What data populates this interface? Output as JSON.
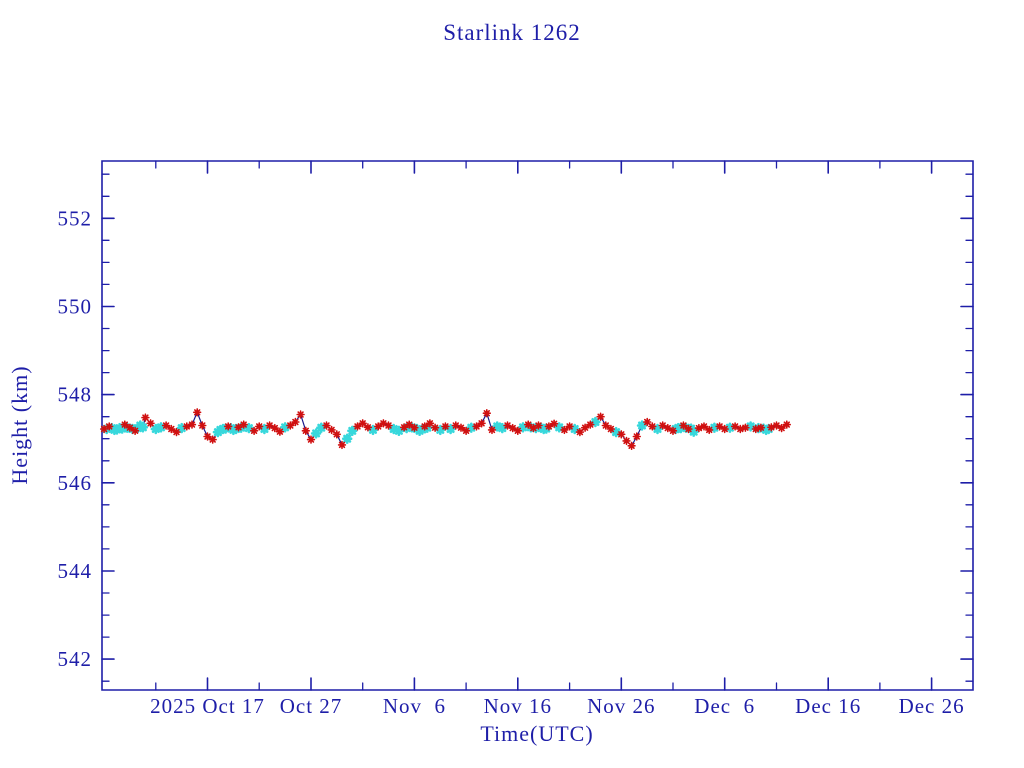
{
  "page": {
    "background": "#ffffff"
  },
  "chart_data": {
    "type": "line",
    "title": "Starlink 1262",
    "xlabel": "Time(UTC)",
    "ylabel": "Height (km)",
    "x_unit": "days, day 0 = 2025 Oct 7",
    "xlim": [
      -0.2,
      84.0
    ],
    "ylim": [
      541.3,
      553.3
    ],
    "grid": false,
    "legend": null,
    "x_major_ticks": [
      {
        "day": 10,
        "label": "2025 Oct 17"
      },
      {
        "day": 20,
        "label": "Oct 27"
      },
      {
        "day": 30,
        "label": "Nov  6"
      },
      {
        "day": 40,
        "label": "Nov 16"
      },
      {
        "day": 50,
        "label": "Nov 26"
      },
      {
        "day": 60,
        "label": "Dec  6"
      },
      {
        "day": 70,
        "label": "Dec 16"
      },
      {
        "day": 80,
        "label": "Dec 26"
      }
    ],
    "x_minor_tick_days": [
      5,
      15,
      25,
      35,
      45,
      55,
      65,
      75
    ],
    "y_major_ticks": [
      542,
      544,
      546,
      548,
      550,
      552
    ],
    "y_minor_tick_step": 0.5,
    "colors": {
      "axis_text": "#1e1ea8",
      "frame": "#1e1ea8",
      "connect_line": "#1a1a8c",
      "red_marker": "#d01010",
      "cyan_marker": "#38d8dc",
      "background": "#ffffff"
    },
    "series": [
      {
        "name": "height-obs-red",
        "marker": "asterisk",
        "color_key": "red_marker",
        "points": [
          [
            0.0,
            547.22
          ],
          [
            0.5,
            547.28
          ],
          [
            2.0,
            547.32
          ],
          [
            2.5,
            547.25
          ],
          [
            3.0,
            547.18
          ],
          [
            4.0,
            547.48
          ],
          [
            4.5,
            547.35
          ],
          [
            6.0,
            547.3
          ],
          [
            6.5,
            547.22
          ],
          [
            7.0,
            547.15
          ],
          [
            8.0,
            547.28
          ],
          [
            8.5,
            547.32
          ],
          [
            9.0,
            547.6
          ],
          [
            9.5,
            547.3
          ],
          [
            10.0,
            547.05
          ],
          [
            10.5,
            546.98
          ],
          [
            12.0,
            547.28
          ],
          [
            13.0,
            547.26
          ],
          [
            13.5,
            547.32
          ],
          [
            14.5,
            547.18
          ],
          [
            15.0,
            547.28
          ],
          [
            16.0,
            547.3
          ],
          [
            16.5,
            547.24
          ],
          [
            17.0,
            547.16
          ],
          [
            18.0,
            547.3
          ],
          [
            18.5,
            547.38
          ],
          [
            19.0,
            547.55
          ],
          [
            19.5,
            547.18
          ],
          [
            20.0,
            546.98
          ],
          [
            21.5,
            547.3
          ],
          [
            22.0,
            547.2
          ],
          [
            22.5,
            547.1
          ],
          [
            23.0,
            546.86
          ],
          [
            24.5,
            547.28
          ],
          [
            25.0,
            547.35
          ],
          [
            25.5,
            547.26
          ],
          [
            26.5,
            547.28
          ],
          [
            27.0,
            547.35
          ],
          [
            27.5,
            547.3
          ],
          [
            29.0,
            547.26
          ],
          [
            29.5,
            547.32
          ],
          [
            30.0,
            547.25
          ],
          [
            31.0,
            547.28
          ],
          [
            31.5,
            547.35
          ],
          [
            32.0,
            547.25
          ],
          [
            33.0,
            547.28
          ],
          [
            34.0,
            547.3
          ],
          [
            34.5,
            547.25
          ],
          [
            35.0,
            547.18
          ],
          [
            36.0,
            547.28
          ],
          [
            36.5,
            547.35
          ],
          [
            37.0,
            547.58
          ],
          [
            37.5,
            547.2
          ],
          [
            39.0,
            547.3
          ],
          [
            39.5,
            547.24
          ],
          [
            40.0,
            547.18
          ],
          [
            41.0,
            547.32
          ],
          [
            41.5,
            547.24
          ],
          [
            42.0,
            547.3
          ],
          [
            43.0,
            547.28
          ],
          [
            43.5,
            547.34
          ],
          [
            44.5,
            547.2
          ],
          [
            45.0,
            547.28
          ],
          [
            46.0,
            547.15
          ],
          [
            46.5,
            547.25
          ],
          [
            47.0,
            547.32
          ],
          [
            48.0,
            547.5
          ],
          [
            48.5,
            547.3
          ],
          [
            49.0,
            547.22
          ],
          [
            50.0,
            547.1
          ],
          [
            50.5,
            546.95
          ],
          [
            51.0,
            546.84
          ],
          [
            51.5,
            547.05
          ],
          [
            52.5,
            547.38
          ],
          [
            53.0,
            547.28
          ],
          [
            54.0,
            547.3
          ],
          [
            54.5,
            547.24
          ],
          [
            55.0,
            547.18
          ],
          [
            56.0,
            547.3
          ],
          [
            56.5,
            547.22
          ],
          [
            57.5,
            547.24
          ],
          [
            58.0,
            547.28
          ],
          [
            58.5,
            547.2
          ],
          [
            59.5,
            547.28
          ],
          [
            60.0,
            547.22
          ],
          [
            61.0,
            547.28
          ],
          [
            61.5,
            547.22
          ],
          [
            62.0,
            547.25
          ],
          [
            63.0,
            547.22
          ],
          [
            63.5,
            547.25
          ],
          [
            64.5,
            547.26
          ],
          [
            65.0,
            547.3
          ],
          [
            65.5,
            547.24
          ],
          [
            66.0,
            547.32
          ]
        ]
      },
      {
        "name": "height-obs-cyan",
        "marker": "asterisk",
        "color_key": "cyan_marker",
        "points": [
          [
            0.25,
            547.22
          ],
          [
            0.75,
            547.24
          ],
          [
            1.0,
            547.2
          ],
          [
            1.25,
            547.21
          ],
          [
            1.5,
            547.24
          ],
          [
            1.75,
            547.23
          ],
          [
            2.25,
            547.25
          ],
          [
            2.75,
            547.22
          ],
          [
            3.25,
            547.24
          ],
          [
            3.5,
            547.3
          ],
          [
            3.75,
            547.26
          ],
          [
            5.0,
            547.22
          ],
          [
            5.5,
            547.26
          ],
          [
            7.5,
            547.24
          ],
          [
            11.0,
            547.15
          ],
          [
            11.25,
            547.2
          ],
          [
            11.5,
            547.22
          ],
          [
            11.75,
            547.23
          ],
          [
            12.25,
            547.24
          ],
          [
            12.5,
            547.2
          ],
          [
            12.75,
            547.22
          ],
          [
            13.25,
            547.25
          ],
          [
            14.0,
            547.24
          ],
          [
            15.5,
            547.22
          ],
          [
            17.5,
            547.26
          ],
          [
            20.5,
            547.12
          ],
          [
            21.0,
            547.25
          ],
          [
            23.5,
            547.0
          ],
          [
            24.0,
            547.18
          ],
          [
            26.0,
            547.2
          ],
          [
            28.0,
            547.22
          ],
          [
            28.5,
            547.18
          ],
          [
            29.25,
            547.24
          ],
          [
            29.75,
            547.26
          ],
          [
            30.25,
            547.22
          ],
          [
            30.5,
            547.18
          ],
          [
            30.75,
            547.21
          ],
          [
            31.25,
            547.25
          ],
          [
            32.5,
            547.2
          ],
          [
            33.5,
            547.22
          ],
          [
            35.5,
            547.25
          ],
          [
            38.0,
            547.28
          ],
          [
            38.5,
            547.24
          ],
          [
            40.5,
            547.26
          ],
          [
            41.25,
            547.26
          ],
          [
            41.75,
            547.24
          ],
          [
            42.25,
            547.25
          ],
          [
            42.5,
            547.22
          ],
          [
            42.75,
            547.23
          ],
          [
            44.0,
            547.26
          ],
          [
            45.5,
            547.22
          ],
          [
            47.5,
            547.38
          ],
          [
            49.5,
            547.15
          ],
          [
            52.0,
            547.3
          ],
          [
            53.5,
            547.22
          ],
          [
            55.25,
            547.22
          ],
          [
            55.5,
            547.24
          ],
          [
            55.75,
            547.24
          ],
          [
            56.25,
            547.25
          ],
          [
            56.75,
            547.23
          ],
          [
            57.0,
            547.16
          ],
          [
            59.0,
            547.25
          ],
          [
            60.5,
            547.25
          ],
          [
            62.5,
            547.28
          ],
          [
            63.25,
            547.24
          ],
          [
            63.75,
            547.23
          ],
          [
            64.0,
            547.2
          ],
          [
            64.25,
            547.22
          ]
        ]
      }
    ]
  }
}
